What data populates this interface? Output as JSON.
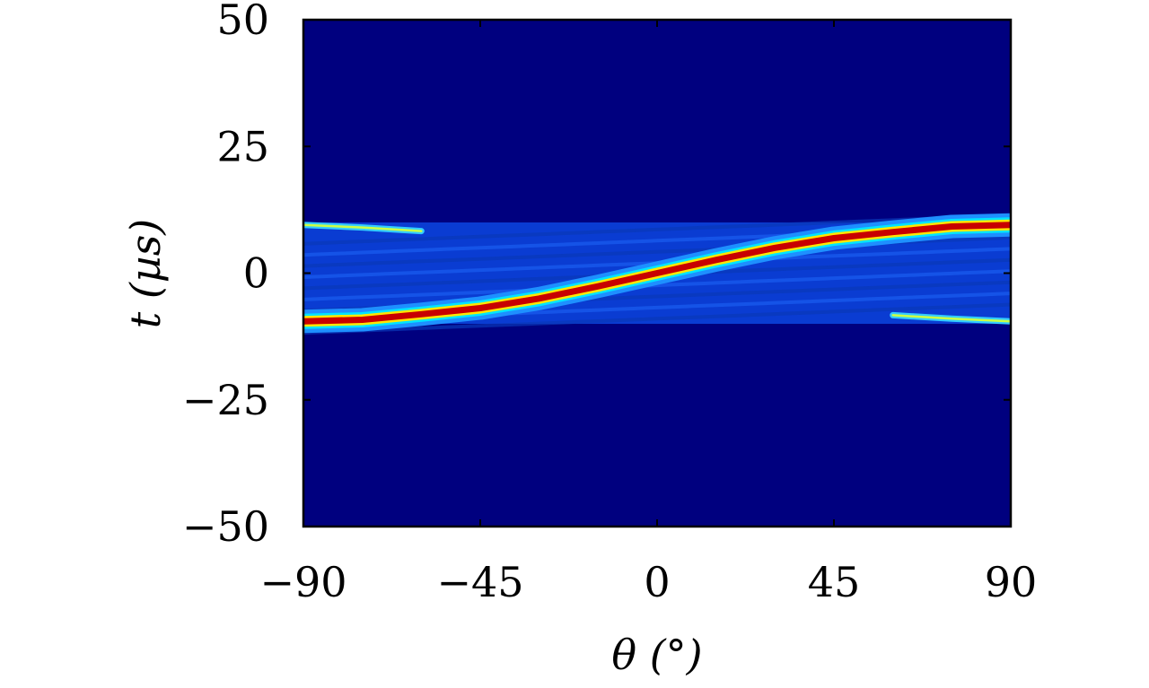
{
  "chart_data": {
    "type": "heatmap",
    "title": "",
    "xlabel": "θ (°)",
    "ylabel": "t (µs)",
    "xlim": [
      -90,
      90
    ],
    "ylim": [
      -50,
      50
    ],
    "xticks": [
      -90,
      -45,
      0,
      45,
      90
    ],
    "xtick_labels": [
      "−90",
      "−45",
      "0",
      "45",
      "90"
    ],
    "yticks": [
      50,
      25,
      0,
      -25,
      -50
    ],
    "ytick_labels": [
      "50",
      "25",
      "0",
      "−25",
      "−50"
    ],
    "colormap": "jet",
    "background_color": "#00007f",
    "active_band_t": [
      -10,
      10
    ],
    "peak_curve": {
      "description_free": true,
      "theta": [
        -90,
        -75,
        -60,
        -45,
        -30,
        -15,
        0,
        15,
        30,
        45,
        60,
        75,
        90
      ],
      "t": [
        -9.5,
        -9.2,
        -8.1,
        -6.9,
        -5.0,
        -2.6,
        0.0,
        2.6,
        5.0,
        6.9,
        8.1,
        9.2,
        9.5
      ]
    },
    "secondary_curves": [
      {
        "theta": [
          -90,
          -75,
          -60
        ],
        "t": [
          9.5,
          9.0,
          8.3
        ]
      },
      {
        "theta": [
          60,
          75,
          90
        ],
        "t": [
          -8.3,
          -9.0,
          -9.5
        ]
      }
    ],
    "grid": false,
    "colorbar": false
  }
}
